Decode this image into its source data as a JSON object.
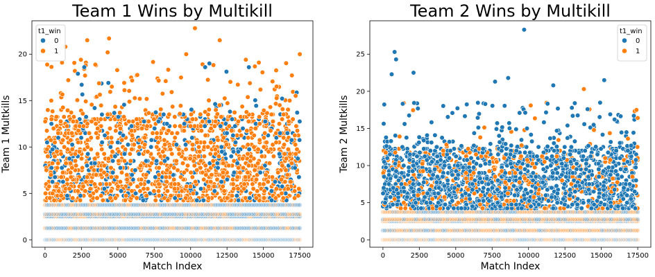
{
  "chart_data": [
    {
      "type": "scatter",
      "title": "Team 1 Wins by Multikill",
      "xlabel": "Match Index",
      "ylabel": "Team 1 Multkills",
      "xlim": [
        -900,
        18400
      ],
      "ylim": [
        -0.8,
        23.6
      ],
      "xticks": [
        0,
        2500,
        5000,
        7500,
        10000,
        12500,
        15000,
        17500
      ],
      "xtick_labels": [
        "0",
        "2500",
        "5000",
        "7500",
        "10000",
        "12500",
        "15000",
        "17500"
      ],
      "yticks": [
        0,
        5,
        10,
        15,
        20
      ],
      "ytick_labels": [
        "0",
        "5",
        "10",
        "15",
        "20"
      ],
      "grid": false,
      "legend": {
        "placement": "top-left",
        "title": "t1_win",
        "entries": [
          {
            "label": "0",
            "color": "#1f77b4"
          },
          {
            "label": "1",
            "color": "#ff7f0e"
          }
        ]
      },
      "series": [
        {
          "name": "0",
          "color": "#1f77b4",
          "distribution": {
            "levels": [
              0,
              1.25,
              2.5,
              2.75,
              3.75,
              4.5,
              5.25,
              6,
              6.5,
              7,
              7.5,
              8,
              9,
              10,
              11,
              12,
              13,
              14,
              18.5
            ],
            "x_range": [
              0,
              17500
            ]
          }
        },
        {
          "name": "1",
          "color": "#ff7f0e",
          "distribution": {
            "levels": [
              0,
              1.25,
              2.5,
              2.75,
              3.75,
              4.5,
              5.25,
              6,
              6.5,
              7,
              7.5,
              8,
              8.5,
              9,
              10,
              11,
              12,
              13,
              14,
              15,
              16,
              17,
              18,
              19,
              20,
              21.5,
              22.8
            ],
            "x_range": [
              0,
              17500
            ]
          }
        }
      ],
      "highlights": [
        {
          "x": 10300,
          "y": 22.8,
          "series": "1"
        },
        {
          "x": 4400,
          "y": 21.7,
          "series": "1"
        },
        {
          "x": 2900,
          "y": 21.5,
          "series": "1"
        },
        {
          "x": 12000,
          "y": 21.5,
          "series": "1"
        },
        {
          "x": 17500,
          "y": 20.0,
          "series": "1"
        },
        {
          "x": 4300,
          "y": 20.2,
          "series": "1"
        },
        {
          "x": 1400,
          "y": 20.8,
          "series": "1"
        },
        {
          "x": 2700,
          "y": 18.6,
          "series": "0"
        },
        {
          "x": 11000,
          "y": 18.6,
          "series": "0"
        },
        {
          "x": 14000,
          "y": 18.6,
          "series": "0"
        },
        {
          "x": 9700,
          "y": 20.0,
          "series": "1"
        }
      ]
    },
    {
      "type": "scatter",
      "title": "Team 2 Wins by Multikill",
      "xlabel": "Match Index",
      "ylabel": "Team 2 Multkills",
      "xlim": [
        -900,
        18400
      ],
      "ylim": [
        -1.0,
        29.5
      ],
      "xticks": [
        0,
        2500,
        5000,
        7500,
        10000,
        12500,
        15000,
        17500
      ],
      "xtick_labels": [
        "0",
        "2500",
        "5000",
        "7500",
        "10000",
        "12500",
        "15000",
        "17500"
      ],
      "yticks": [
        0,
        5,
        10,
        15,
        20,
        25
      ],
      "ytick_labels": [
        "0",
        "5",
        "10",
        "15",
        "20",
        "25"
      ],
      "grid": false,
      "legend": {
        "placement": "top-right",
        "title": "t1_win",
        "entries": [
          {
            "label": "0",
            "color": "#1f77b4"
          },
          {
            "label": "1",
            "color": "#ff7f0e"
          }
        ]
      },
      "series": [
        {
          "name": "0",
          "color": "#1f77b4",
          "distribution": {
            "levels": [
              0,
              1.25,
              2.5,
              2.75,
              3.75,
              4.5,
              5.25,
              6,
              6.5,
              7,
              7.5,
              8,
              8.5,
              9,
              10,
              11,
              12,
              13,
              14,
              15,
              16,
              17,
              18,
              19,
              20,
              22.5,
              25.3,
              28.3
            ],
            "x_range": [
              0,
              17500
            ]
          }
        },
        {
          "name": "1",
          "color": "#ff7f0e",
          "distribution": {
            "levels": [
              0,
              1.25,
              2.5,
              2.75,
              3.75,
              4.5,
              5.25,
              6,
              7,
              8,
              9,
              10,
              11,
              12,
              13,
              15,
              16.5,
              20.3
            ],
            "x_range": [
              0,
              17500
            ]
          }
        }
      ],
      "highlights": [
        {
          "x": 9700,
          "y": 28.3,
          "series": "0"
        },
        {
          "x": 800,
          "y": 25.3,
          "series": "0"
        },
        {
          "x": 900,
          "y": 24.3,
          "series": "0"
        },
        {
          "x": 600,
          "y": 22.3,
          "series": "0"
        },
        {
          "x": 2100,
          "y": 22.5,
          "series": "0"
        },
        {
          "x": 8600,
          "y": 21.8,
          "series": "0"
        },
        {
          "x": 15200,
          "y": 21.5,
          "series": "0"
        },
        {
          "x": 7700,
          "y": 21.3,
          "series": "0"
        },
        {
          "x": 11700,
          "y": 20.8,
          "series": "0"
        },
        {
          "x": 13800,
          "y": 20.3,
          "series": "1"
        },
        {
          "x": 17500,
          "y": 16.4,
          "series": "1"
        }
      ]
    }
  ]
}
